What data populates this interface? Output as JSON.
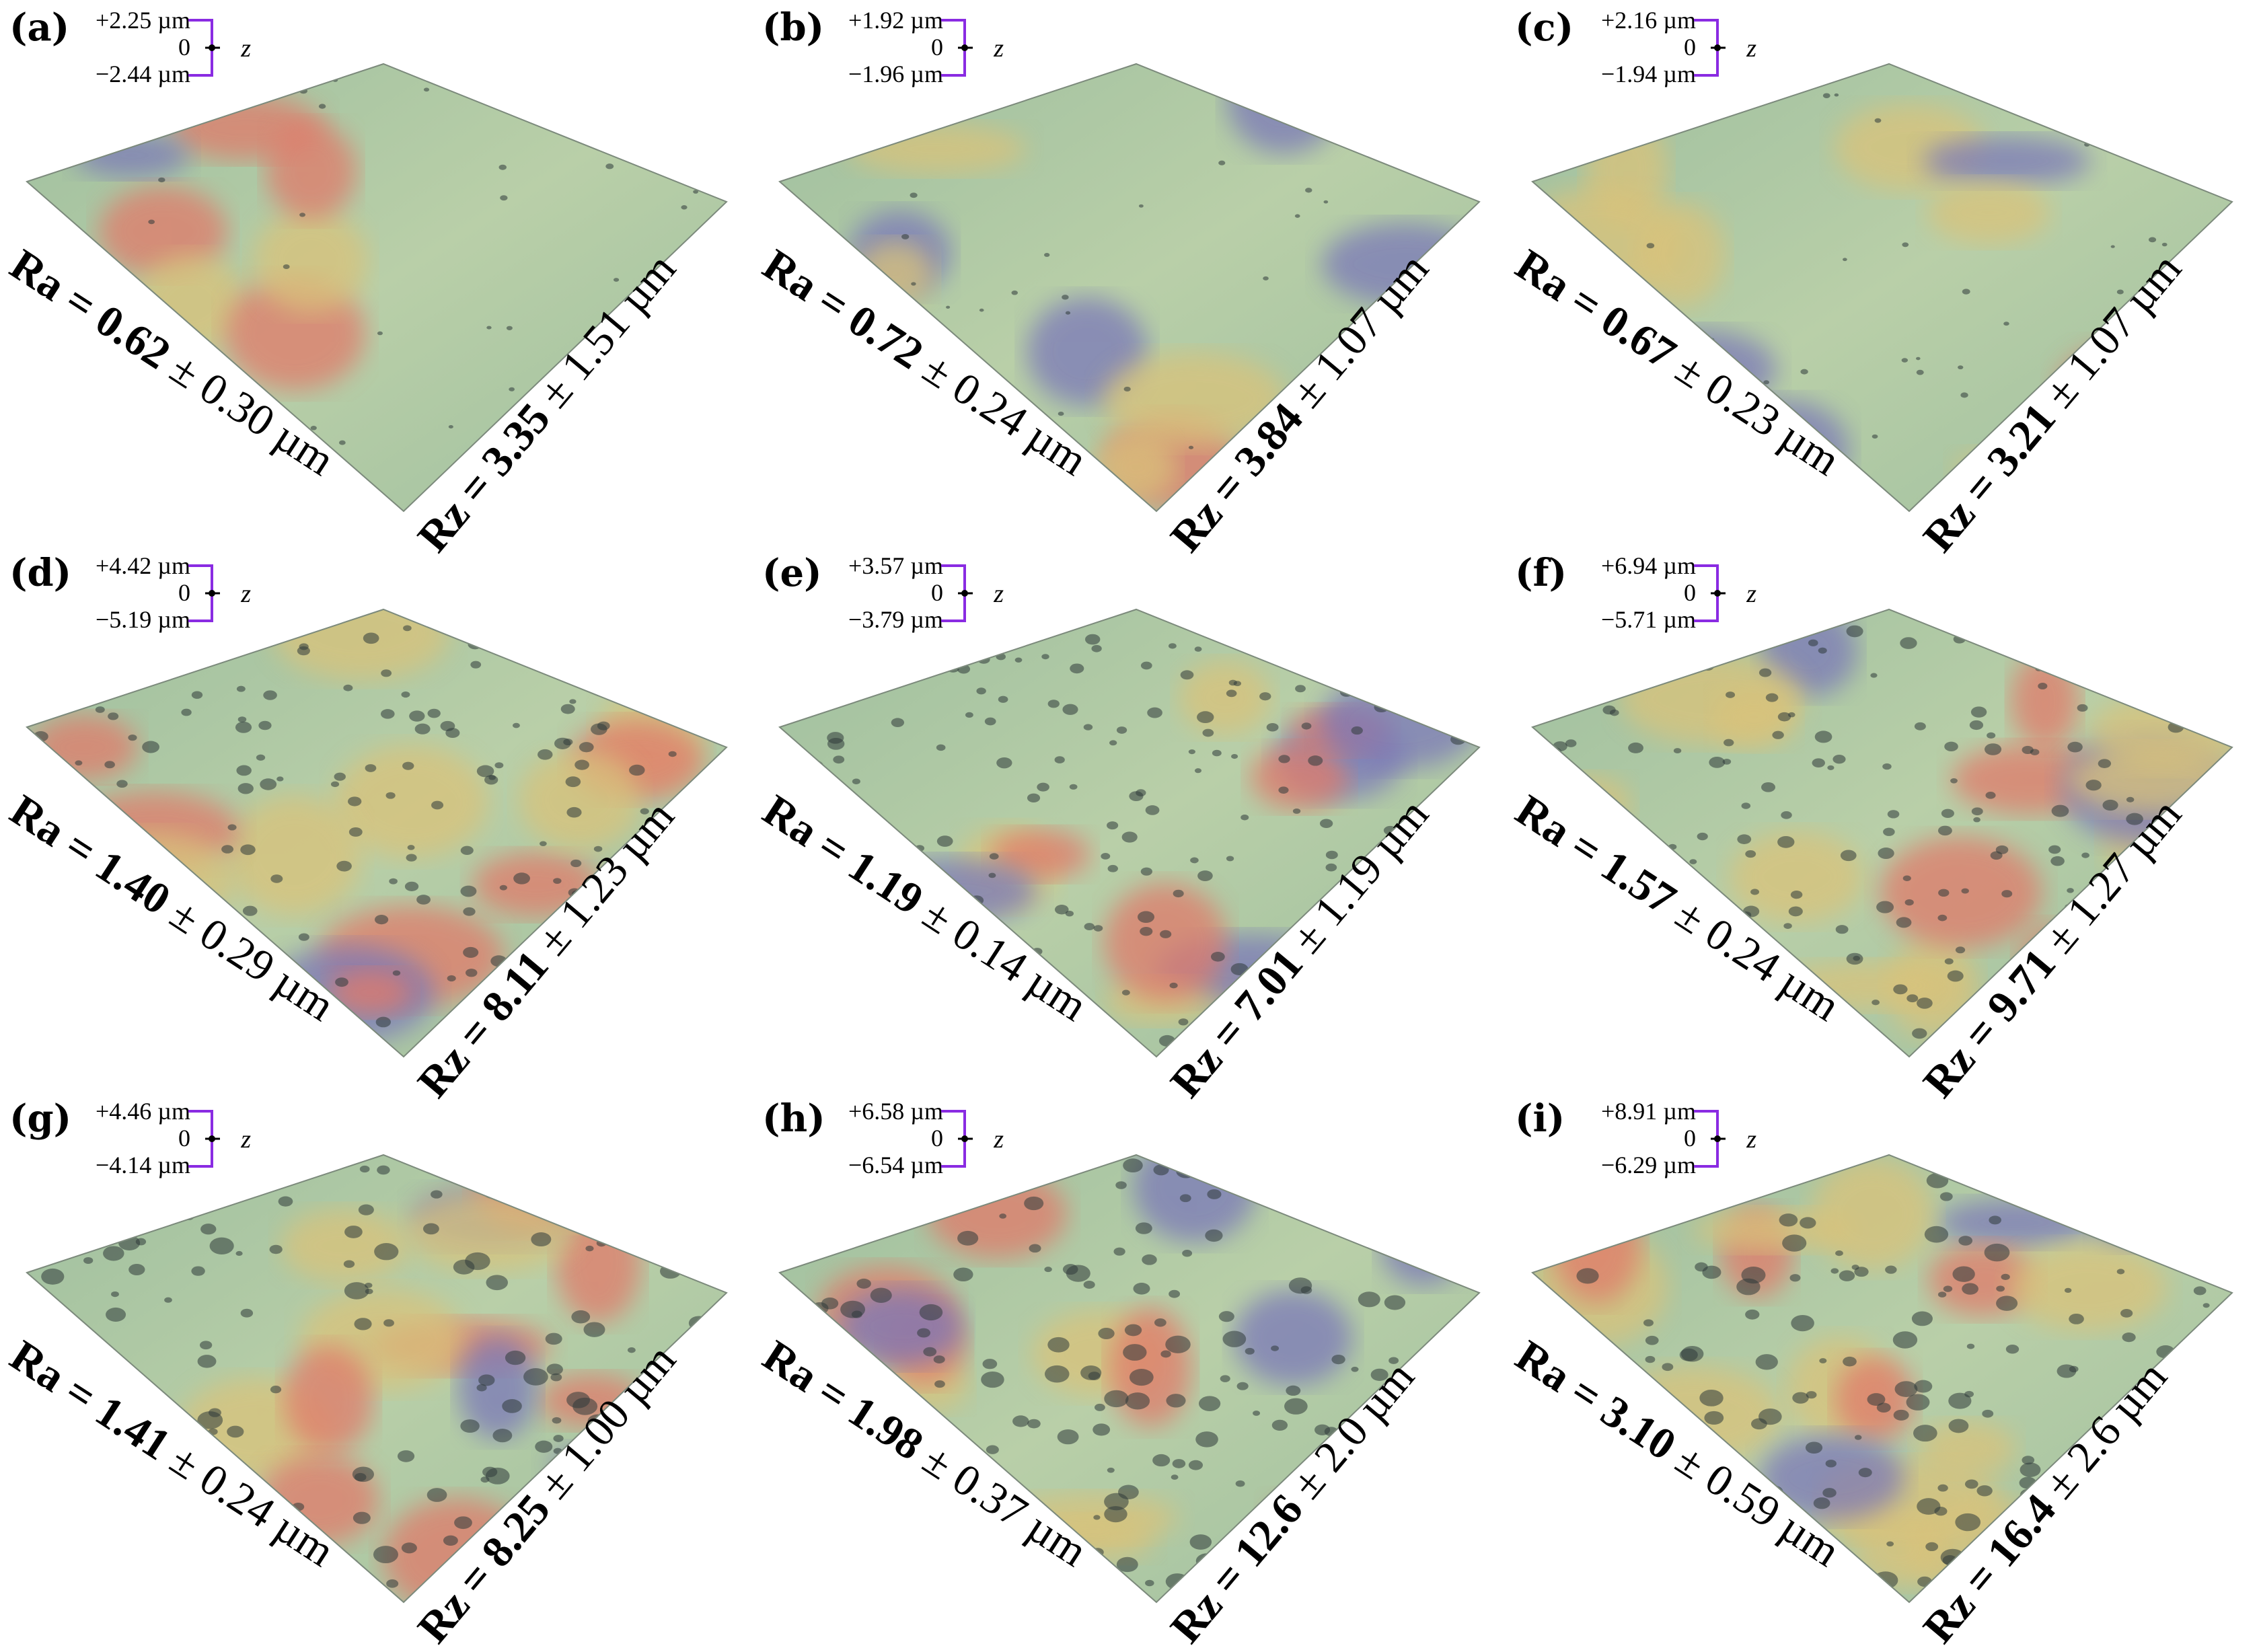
{
  "panels": [
    {
      "tag": "(a)",
      "z_top": "+2.25 µm",
      "z_mid": "0",
      "z_bot": "−2.44 µm",
      "z_axis": "z",
      "ra_label": "Ra =",
      "ra_value": "0.62",
      "ra_err": "± 0.30 µm",
      "rz_label": "Rz =",
      "rz_value": "3.35",
      "rz_err": "± 1.51 µm"
    },
    {
      "tag": "(b)",
      "z_top": "+1.92 µm",
      "z_mid": "0",
      "z_bot": "−1.96 µm",
      "z_axis": "z",
      "ra_label": "Ra =",
      "ra_value": "0.72",
      "ra_err": "± 0.24 µm",
      "rz_label": "Rz =",
      "rz_value": "3.84",
      "rz_err": "± 1.07 µm"
    },
    {
      "tag": "(c)",
      "z_top": "+2.16 µm",
      "z_mid": "0",
      "z_bot": "−1.94 µm",
      "z_axis": "z",
      "ra_label": "Ra =",
      "ra_value": "0.67",
      "ra_err": "± 0.23 µm",
      "rz_label": "Rz =",
      "rz_value": "3.21",
      "rz_err": "± 1.07 µm"
    },
    {
      "tag": "(d)",
      "z_top": "+4.42 µm",
      "z_mid": "0",
      "z_bot": "−5.19 µm",
      "z_axis": "z",
      "ra_label": "Ra =",
      "ra_value": "1.40",
      "ra_err": "± 0.29 µm",
      "rz_label": "Rz =",
      "rz_value": "8.11",
      "rz_err": "± 1.23 µm"
    },
    {
      "tag": "(e)",
      "z_top": "+3.57 µm",
      "z_mid": "0",
      "z_bot": "−3.79 µm",
      "z_axis": "z",
      "ra_label": "Ra =",
      "ra_value": "1.19",
      "ra_err": "± 0.14 µm",
      "rz_label": "Rz =",
      "rz_value": "7.01",
      "rz_err": "± 1.19 µm"
    },
    {
      "tag": "(f)",
      "z_top": "+6.94 µm",
      "z_mid": "0",
      "z_bot": "−5.71 µm",
      "z_axis": "z",
      "ra_label": "Ra =",
      "ra_value": "1.57",
      "ra_err": "± 0.24 µm",
      "rz_label": "Rz =",
      "rz_value": "9.71",
      "rz_err": "± 1.27 µm"
    },
    {
      "tag": "(g)",
      "z_top": "+4.46 µm",
      "z_mid": "0",
      "z_bot": "−4.14 µm",
      "z_axis": "z",
      "ra_label": "Ra =",
      "ra_value": "1.41",
      "ra_err": "± 0.24 µm",
      "rz_label": "Rz =",
      "rz_value": "8.25",
      "rz_err": "± 1.00 µm"
    },
    {
      "tag": "(h)",
      "z_top": "+6.58 µm",
      "z_mid": "0",
      "z_bot": "−6.54 µm",
      "z_axis": "z",
      "ra_label": "Ra =",
      "ra_value": "1.98",
      "ra_err": "± 0.37 µm",
      "rz_label": "Rz =",
      "rz_value": "12.6",
      "rz_err": "± 2.0 µm"
    },
    {
      "tag": "(i)",
      "z_top": "+8.91 µm",
      "z_mid": "0",
      "z_bot": "−6.29 µm",
      "z_axis": "z",
      "ra_label": "Ra =",
      "ra_value": "3.10",
      "ra_err": "± 0.59 µm",
      "rz_label": "Rz =",
      "rz_value": "16.4",
      "rz_err": "± 2.6 µm"
    }
  ],
  "colors": {
    "surface_base": "#9fbf9f",
    "surface_high": "#e07a6a",
    "surface_mid": "#d9c27a",
    "surface_low": "#7a78b8",
    "scale_bar": "#8a2be2"
  }
}
